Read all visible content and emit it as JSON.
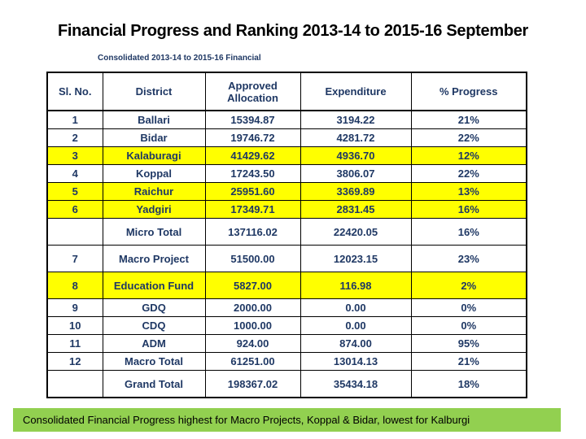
{
  "title": "Financial Progress and Ranking 2013-14 to 2015-16 September",
  "subtitle": "Consolidated 2013-14 to 2015-16 Financial",
  "colors": {
    "table_text": "#1f3864",
    "highlight_row": "#ffff00",
    "footer_bg": "#92d050",
    "border": "#000000"
  },
  "table": {
    "columns": [
      "Sl. No.",
      "District",
      "Approved Allocation",
      "Expenditure",
      "% Progress"
    ],
    "rows": [
      {
        "sl": "1",
        "district": "Ballari",
        "allocation": "15394.87",
        "expenditure": "3194.22",
        "progress": "21%",
        "highlight": false,
        "tall": false
      },
      {
        "sl": "2",
        "district": "Bidar",
        "allocation": "19746.72",
        "expenditure": "4281.72",
        "progress": "22%",
        "highlight": false,
        "tall": false
      },
      {
        "sl": "3",
        "district": "Kalaburagi",
        "allocation": "41429.62",
        "expenditure": "4936.70",
        "progress": "12%",
        "highlight": true,
        "tall": false
      },
      {
        "sl": "4",
        "district": "Koppal",
        "allocation": "17243.50",
        "expenditure": "3806.07",
        "progress": "22%",
        "highlight": false,
        "tall": false
      },
      {
        "sl": "5",
        "district": "Raichur",
        "allocation": "25951.60",
        "expenditure": "3369.89",
        "progress": "13%",
        "highlight": true,
        "tall": false
      },
      {
        "sl": "6",
        "district": "Yadgiri",
        "allocation": "17349.71",
        "expenditure": "2831.45",
        "progress": "16%",
        "highlight": true,
        "tall": false
      },
      {
        "sl": "",
        "district": "Micro Total",
        "allocation": "137116.02",
        "expenditure": "22420.05",
        "progress": "16%",
        "highlight": false,
        "tall": true
      },
      {
        "sl": "7",
        "district": "Macro Project",
        "allocation": "51500.00",
        "expenditure": "12023.15",
        "progress": "23%",
        "highlight": false,
        "tall": true
      },
      {
        "sl": "8",
        "district": "Education Fund",
        "allocation": "5827.00",
        "expenditure": "116.98",
        "progress": "2%",
        "highlight": true,
        "tall": true
      },
      {
        "sl": "9",
        "district": "GDQ",
        "allocation": "2000.00",
        "expenditure": "0.00",
        "progress": "0%",
        "highlight": false,
        "tall": false
      },
      {
        "sl": "10",
        "district": "CDQ",
        "allocation": "1000.00",
        "expenditure": "0.00",
        "progress": "0%",
        "highlight": false,
        "tall": false
      },
      {
        "sl": "11",
        "district": "ADM",
        "allocation": "924.00",
        "expenditure": "874.00",
        "progress": "95%",
        "highlight": false,
        "tall": false
      },
      {
        "sl": "12",
        "district": "Macro Total",
        "allocation": "61251.00",
        "expenditure": "13014.13",
        "progress": "21%",
        "highlight": false,
        "tall": false
      },
      {
        "sl": "",
        "district": "Grand Total",
        "allocation": "198367.02",
        "expenditure": "35434.18",
        "progress": "18%",
        "highlight": false,
        "tall": true
      }
    ]
  },
  "footer": {
    "text": "Consolidated Financial Progress highest for Macro Projects, Koppal & Bidar, lowest for Kalburgi"
  }
}
